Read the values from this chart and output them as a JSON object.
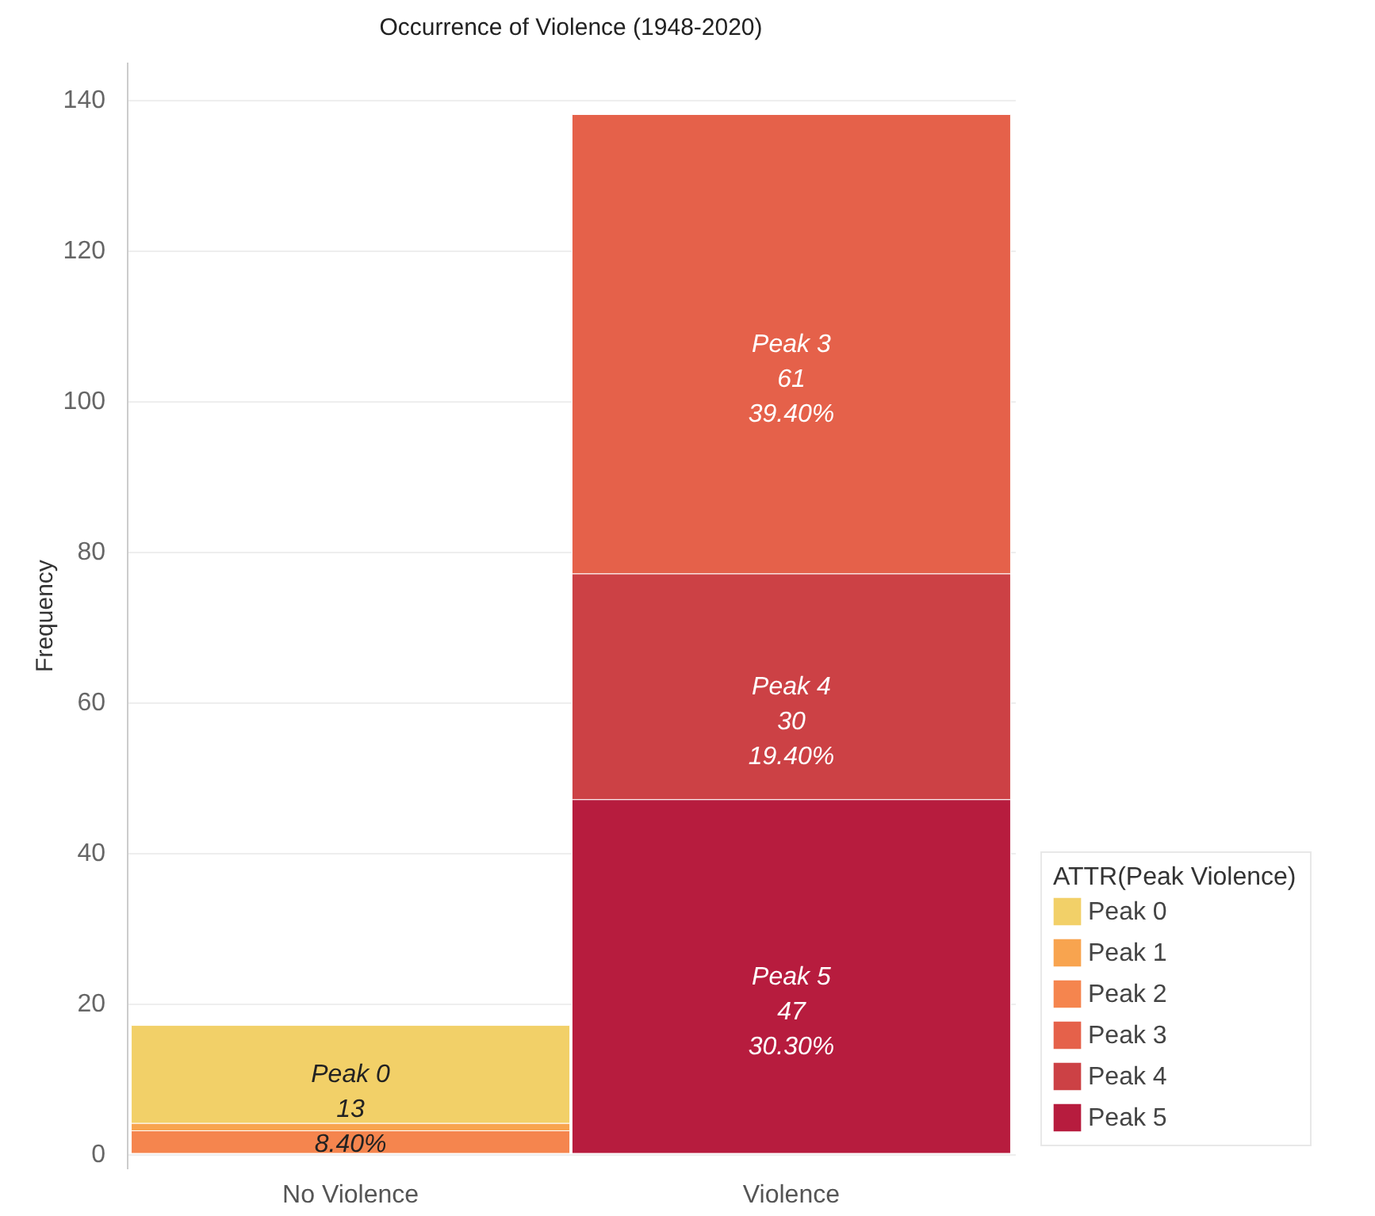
{
  "chart_data": {
    "type": "bar",
    "title": "Occurrence of Violence (1948-2020)",
    "ylabel": "Frequency",
    "legend_title": "ATTR(Peak Violence)",
    "categories": [
      "No Violence",
      "Violence"
    ],
    "stacked": true,
    "series": [
      {
        "name": "Peak 5",
        "color": "#b71c3e",
        "values": [
          null,
          47
        ],
        "value_labels": [
          null,
          "Peak 5\n47\n30.30%"
        ]
      },
      {
        "name": "Peak 4",
        "color": "#cc4145",
        "values": [
          null,
          30
        ],
        "value_labels": [
          null,
          "Peak 4\n30\n19.40%"
        ]
      },
      {
        "name": "Peak 3",
        "color": "#e5614a",
        "values": [
          null,
          61
        ],
        "value_labels": [
          null,
          "Peak 3\n61\n39.40%"
        ]
      },
      {
        "name": "Peak 2",
        "color": "#f5854e",
        "values": [
          3,
          null
        ],
        "value_labels": [
          null,
          null
        ]
      },
      {
        "name": "Peak 1",
        "color": "#f8a44f",
        "values": [
          1,
          null
        ],
        "value_labels": [
          null,
          null
        ]
      },
      {
        "name": "Peak 0",
        "color": "#f2d068",
        "values": [
          13,
          null
        ],
        "value_labels": [
          "Peak 0\n13\n8.40%",
          null
        ]
      }
    ],
    "ylim": [
      -2,
      145
    ],
    "yticks": [
      0,
      20,
      40,
      60,
      80,
      100,
      120,
      140
    ],
    "grid": "y",
    "legend": "bottom right"
  }
}
